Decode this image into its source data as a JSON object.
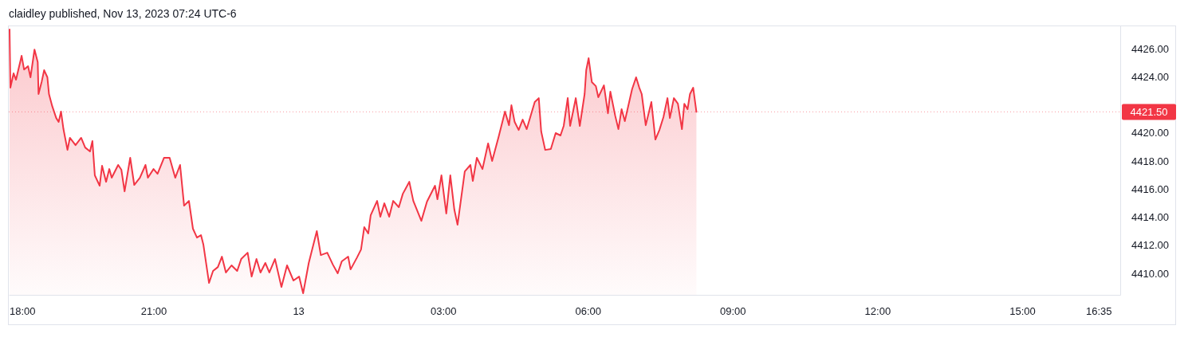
{
  "chart_data": {
    "type": "area",
    "title": "claidley published, Nov 13, 2023 07:24 UTC-6",
    "x": [
      "2023-11-12T18:01",
      "2023-11-12T18:02",
      "2023-11-12T18:06",
      "2023-11-12T18:09",
      "2023-11-12T18:16",
      "2023-11-12T18:19",
      "2023-11-12T18:24",
      "2023-11-12T18:27",
      "2023-11-12T18:32",
      "2023-11-12T18:36",
      "2023-11-12T18:37",
      "2023-11-12T18:41",
      "2023-11-12T18:44",
      "2023-11-12T18:48",
      "2023-11-12T18:50",
      "2023-11-12T18:54",
      "2023-11-12T18:59",
      "2023-11-12T19:02",
      "2023-11-12T19:05",
      "2023-11-12T19:08",
      "2023-11-12T19:13",
      "2023-11-12T19:16",
      "2023-11-12T19:23",
      "2023-11-12T19:30",
      "2023-11-12T19:35",
      "2023-11-12T19:41",
      "2023-11-12T19:44",
      "2023-11-12T19:47",
      "2023-11-12T19:53",
      "2023-11-12T19:56",
      "2023-11-12T20:01",
      "2023-11-12T20:05",
      "2023-11-12T20:08",
      "2023-11-12T20:16",
      "2023-11-12T20:20",
      "2023-11-12T20:24",
      "2023-11-12T20:31",
      "2023-11-12T20:36",
      "2023-11-12T20:43",
      "2023-11-12T20:50",
      "2023-11-12T20:53",
      "2023-11-12T21:00",
      "2023-11-12T21:05",
      "2023-11-12T21:13",
      "2023-11-12T21:20",
      "2023-11-12T21:27",
      "2023-11-12T21:33",
      "2023-11-12T21:38",
      "2023-11-12T21:44",
      "2023-11-12T21:49",
      "2023-11-12T21:54",
      "2023-11-12T21:59",
      "2023-11-12T22:02",
      "2023-11-12T22:09",
      "2023-11-12T22:14",
      "2023-11-12T22:20",
      "2023-11-12T22:25",
      "2023-11-12T22:30",
      "2023-11-12T22:37",
      "2023-11-12T22:44",
      "2023-11-12T22:49",
      "2023-11-12T22:57",
      "2023-11-12T23:02",
      "2023-11-12T23:08",
      "2023-11-12T23:13",
      "2023-11-12T23:19",
      "2023-11-12T23:24",
      "2023-11-12T23:31",
      "2023-11-12T23:39",
      "2023-11-12T23:46",
      "2023-11-12T23:54",
      "2023-11-13T00:01",
      "2023-11-13T00:06",
      "2023-11-13T00:13",
      "2023-11-13T00:23",
      "2023-11-13T00:28",
      "2023-11-13T00:36",
      "2023-11-13T00:43",
      "2023-11-13T00:49",
      "2023-11-13T00:54",
      "2023-11-13T01:02",
      "2023-11-13T01:05",
      "2023-11-13T01:13",
      "2023-11-13T01:18",
      "2023-11-13T01:22",
      "2023-11-13T01:27",
      "2023-11-13T01:30",
      "2023-11-13T01:38",
      "2023-11-13T01:42",
      "2023-11-13T01:47",
      "2023-11-13T01:53",
      "2023-11-13T01:58",
      "2023-11-13T02:05",
      "2023-11-13T02:10",
      "2023-11-13T02:18",
      "2023-11-13T02:23",
      "2023-11-13T02:33",
      "2023-11-13T02:40",
      "2023-11-13T02:50",
      "2023-11-13T02:53",
      "2023-11-13T02:58",
      "2023-11-13T03:04",
      "2023-11-13T03:09",
      "2023-11-13T03:14",
      "2023-11-13T03:18",
      "2023-11-13T03:27",
      "2023-11-13T03:34",
      "2023-11-13T03:37",
      "2023-11-13T03:42",
      "2023-11-13T03:49",
      "2023-11-13T03:56",
      "2023-11-13T04:01",
      "2023-11-13T04:09",
      "2023-11-13T04:17",
      "2023-11-13T04:22",
      "2023-11-13T04:25",
      "2023-11-13T04:29",
      "2023-11-13T04:34",
      "2023-11-13T04:39",
      "2023-11-13T04:44",
      "2023-11-13T04:54",
      "2023-11-13T04:59",
      "2023-11-13T05:02",
      "2023-11-13T05:07",
      "2023-11-13T05:14",
      "2023-11-13T05:20",
      "2023-11-13T05:26",
      "2023-11-13T05:30",
      "2023-11-13T05:35",
      "2023-11-13T05:38",
      "2023-11-13T05:45",
      "2023-11-13T05:50",
      "2023-11-13T05:56",
      "2023-11-13T05:58",
      "2023-11-13T06:01",
      "2023-11-13T06:05",
      "2023-11-13T06:10",
      "2023-11-13T06:13",
      "2023-11-13T06:20",
      "2023-11-13T06:25",
      "2023-11-13T06:28",
      "2023-11-13T06:34",
      "2023-11-13T06:38",
      "2023-11-13T06:42",
      "2023-11-13T06:46",
      "2023-11-13T06:55",
      "2023-11-13T07:00",
      "2023-11-13T07:04",
      "2023-11-13T07:07",
      "2023-11-13T07:12",
      "2023-11-13T07:19",
      "2023-11-13T07:24",
      "2023-11-13T07:29",
      "2023-11-13T07:34",
      "2023-11-13T07:39",
      "2023-11-13T07:42",
      "2023-11-13T07:47",
      "2023-11-13T07:52",
      "2023-11-13T07:57",
      "2023-11-13T08:00",
      "2023-11-13T08:04",
      "2023-11-13T08:07",
      "2023-11-13T08:11",
      "2023-11-13T08:15"
    ],
    "series": [
      {
        "color": "#f23645",
        "values": [
          4427.36,
          4423.22,
          4424.24,
          4423.79,
          4425.49,
          4424.52,
          4424.75,
          4423.96,
          4425.94,
          4425.04,
          4422.77,
          4423.67,
          4424.47,
          4423.96,
          4422.77,
          4421.91,
          4421.06,
          4420.78,
          4421.52,
          4420.27,
          4418.79,
          4419.65,
          4419.13,
          4419.65,
          4418.96,
          4418.68,
          4419.42,
          4416.98,
          4416.24,
          4417.66,
          4416.52,
          4417.43,
          4416.81,
          4417.72,
          4417.38,
          4415.84,
          4418.23,
          4416.3,
          4416.81,
          4417.72,
          4416.81,
          4417.43,
          4417.09,
          4418.23,
          4418.23,
          4416.81,
          4417.72,
          4414.82,
          4415.16,
          4413.18,
          4412.55,
          4412.72,
          4412.04,
          4409.32,
          4410.17,
          4410.45,
          4411.19,
          4410.06,
          4410.57,
          4410.17,
          4411.02,
          4411.47,
          4409.77,
          4411.02,
          4410.06,
          4410.74,
          4410.06,
          4411.02,
          4409.03,
          4410.57,
          4409.49,
          4409.77,
          4408.58,
          4410.74,
          4413.01,
          4411.3,
          4411.47,
          4410.62,
          4410.0,
          4410.85,
          4411.19,
          4410.28,
          4411.13,
          4411.7,
          4413.29,
          4412.84,
          4414.14,
          4415.16,
          4414.03,
          4414.99,
          4414.03,
          4415.16,
          4414.71,
          4415.67,
          4416.52,
          4415.16,
          4413.74,
          4415.11,
          4416.24,
          4415.28,
          4416.98,
          4414.26,
          4416.98,
          4414.54,
          4413.46,
          4417.26,
          4417.72,
          4416.58,
          4418.23,
          4417.43,
          4419.25,
          4418.0,
          4419.7,
          4421.52,
          4420.55,
          4421.97,
          4420.78,
          4420.21,
          4420.95,
          4420.27,
          4422.2,
          4422.48,
          4420.1,
          4418.79,
          4418.85,
          4419.99,
          4419.82,
          4420.5,
          4422.48,
          4420.5,
          4422.48,
          4420.5,
          4422.77,
          4424.47,
          4425.32,
          4423.62,
          4423.33,
          4422.54,
          4423.39,
          4421.4,
          4422.94,
          4421.23,
          4420.27,
          4421.69,
          4420.84,
          4423.11,
          4423.96,
          4423.22,
          4422.77,
          4420.55,
          4422.2,
          4419.53,
          4420.21,
          4421.12,
          4422.48,
          4421.06,
          4422.48,
          4422.08,
          4420.27,
          4422.08,
          4421.69,
          4422.77,
          4423.22,
          4421.5
        ]
      }
    ],
    "xlim": [
      "2023-11-12T18:00",
      "2023-11-13T17:02"
    ],
    "xticks": [
      {
        "value": "2023-11-12T18:00",
        "label": "18:00"
      },
      {
        "value": "2023-11-12T21:00",
        "label": "21:00"
      },
      {
        "value": "2023-11-13T00:00",
        "label": "13"
      },
      {
        "value": "2023-11-13T03:00",
        "label": "03:00"
      },
      {
        "value": "2023-11-13T06:00",
        "label": "06:00"
      },
      {
        "value": "2023-11-13T09:00",
        "label": "09:00"
      },
      {
        "value": "2023-11-13T12:00",
        "label": "12:00"
      },
      {
        "value": "2023-11-13T15:00",
        "label": "15:00"
      },
      {
        "value": "2023-11-13T16:35",
        "label": "16:35"
      }
    ],
    "ylim": [
      4408.47,
      4427.65
    ],
    "yticks": [
      {
        "value": 4410,
        "label": "4410.00"
      },
      {
        "value": 4412,
        "label": "4412.00"
      },
      {
        "value": 4414,
        "label": "4414.00"
      },
      {
        "value": 4416,
        "label": "4416.00"
      },
      {
        "value": 4418,
        "label": "4418.00"
      },
      {
        "value": 4420,
        "label": "4420.00"
      },
      {
        "value": 4424,
        "label": "4424.00"
      },
      {
        "value": 4426,
        "label": "4426.00"
      }
    ],
    "ref_lines": [
      {
        "axis": "y",
        "value": 4421.5,
        "label": "4421.50",
        "color": "#f23645"
      }
    ]
  }
}
